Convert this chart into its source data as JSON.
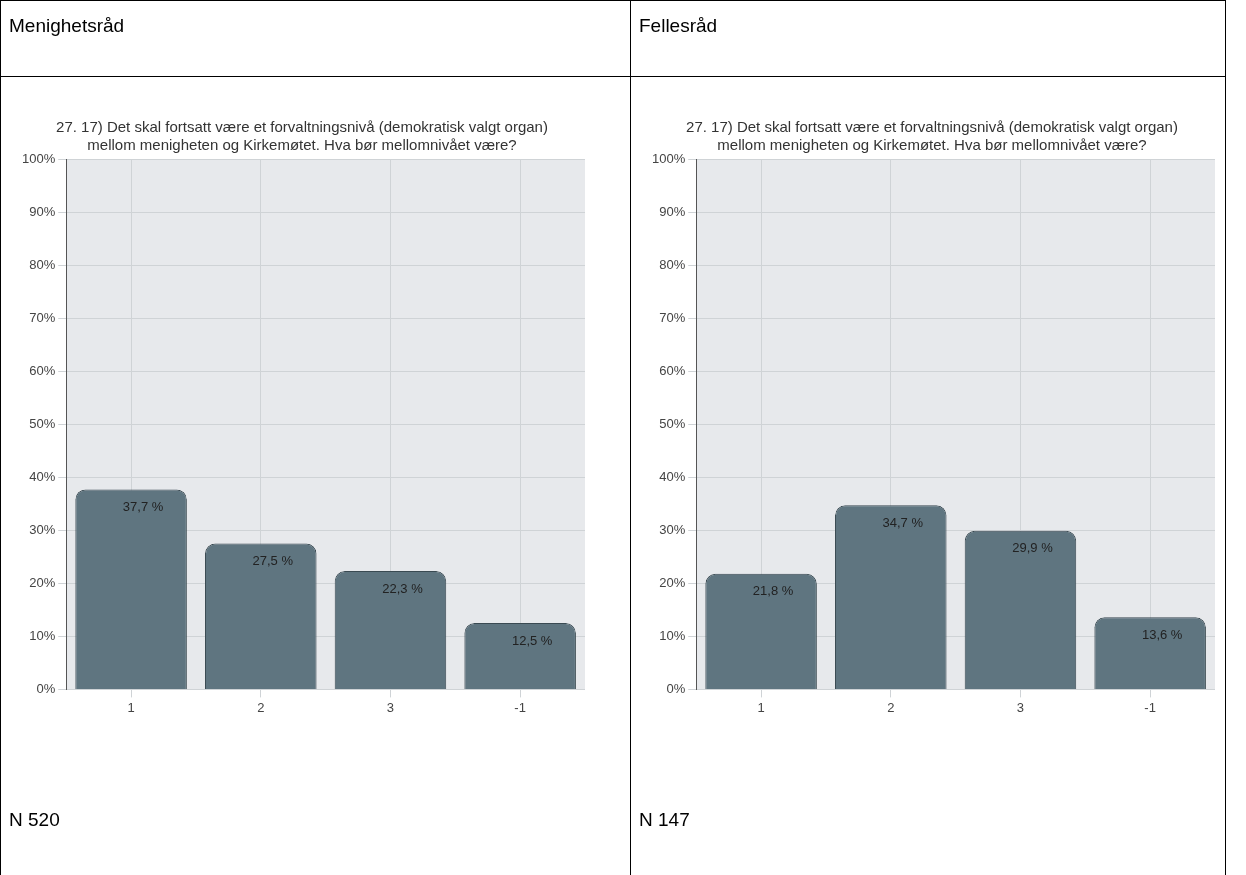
{
  "chart_data": [
    {
      "type": "bar",
      "subtitle": "Menighetsråd",
      "title": [
        "27. 17) Det skal fortsatt være et forvaltningsnivå (demokratisk valgt organ)",
        "mellom menigheten og Kirkemøtet. Hva bør mellomnivået være?"
      ],
      "categories": [
        "1",
        "2",
        "3",
        "-1"
      ],
      "values": [
        37.7,
        27.5,
        22.3,
        12.5
      ],
      "value_labels": [
        "37,7 %",
        "27,5 %",
        "22,3 %",
        "12,5 %"
      ],
      "color": "#5f7580",
      "ylim": [
        0,
        100
      ],
      "yticks": [
        {
          "value": 0,
          "label": "0%"
        },
        {
          "value": 10,
          "label": "10%"
        },
        {
          "value": 20,
          "label": "20%"
        },
        {
          "value": 30,
          "label": "30%"
        },
        {
          "value": 40,
          "label": "40%"
        },
        {
          "value": 50,
          "label": "50%"
        },
        {
          "value": 60,
          "label": "60%"
        },
        {
          "value": 70,
          "label": "70%"
        },
        {
          "value": 80,
          "label": "80%"
        },
        {
          "value": 90,
          "label": "90%"
        },
        {
          "value": 100,
          "label": "100%"
        }
      ],
      "grid": true,
      "annotations": [
        "N 520"
      ]
    },
    {
      "type": "bar",
      "subtitle": "Fellesråd",
      "title": [
        "27. 17) Det skal fortsatt være et forvaltningsnivå (demokratisk valgt organ)",
        "mellom menigheten og Kirkemøtet. Hva bør mellomnivået være?"
      ],
      "categories": [
        "1",
        "2",
        "3",
        "-1"
      ],
      "values": [
        21.8,
        34.7,
        29.9,
        13.6
      ],
      "value_labels": [
        "21,8 %",
        "34,7 %",
        "29,9 %",
        "13,6 %"
      ],
      "color": "#5f7580",
      "ylim": [
        0,
        100
      ],
      "yticks": [
        {
          "value": 0,
          "label": "0%"
        },
        {
          "value": 10,
          "label": "10%"
        },
        {
          "value": 20,
          "label": "20%"
        },
        {
          "value": 30,
          "label": "30%"
        },
        {
          "value": 40,
          "label": "40%"
        },
        {
          "value": 50,
          "label": "50%"
        },
        {
          "value": 60,
          "label": "60%"
        },
        {
          "value": 70,
          "label": "70%"
        },
        {
          "value": 80,
          "label": "80%"
        },
        {
          "value": 90,
          "label": "90%"
        },
        {
          "value": 100,
          "label": "100%"
        }
      ],
      "grid": true,
      "annotations": [
        "N 147"
      ]
    }
  ]
}
